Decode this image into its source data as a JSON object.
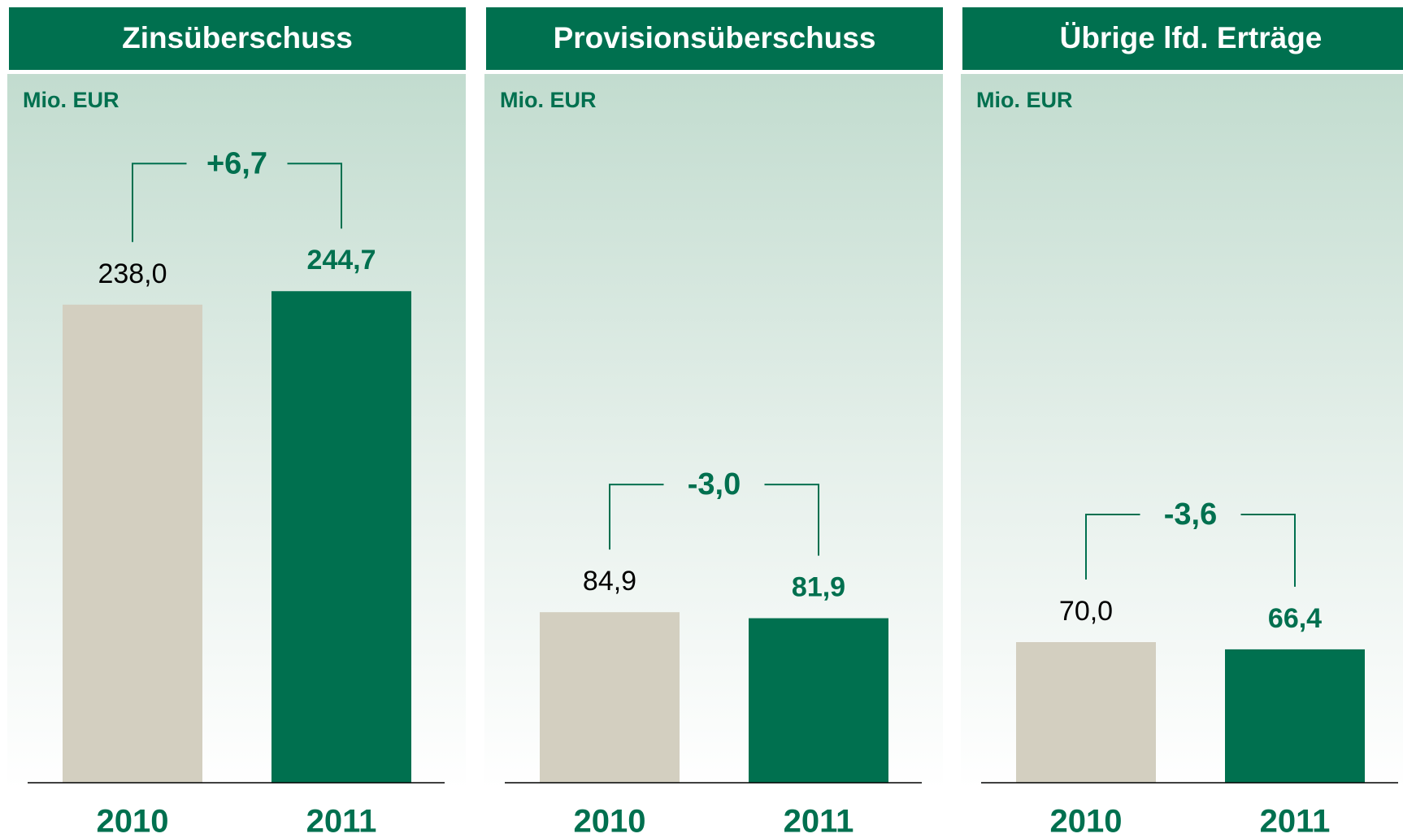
{
  "chart_data": [
    {
      "type": "bar",
      "title": "Zinsüberschuss",
      "unit_label": "Mio. EUR",
      "categories": [
        "2010",
        "2011"
      ],
      "values": [
        238.0,
        244.7
      ],
      "value_labels": [
        "238,0",
        "244,7"
      ],
      "colors": [
        "#d3cfc0",
        "#00704f"
      ],
      "ylim": [
        0,
        350
      ],
      "delta_label": "+6,7"
    },
    {
      "type": "bar",
      "title": "Provisionsüberschuss",
      "unit_label": "Mio. EUR",
      "categories": [
        "2010",
        "2011"
      ],
      "values": [
        84.9,
        81.9
      ],
      "value_labels": [
        "84,9",
        "81,9"
      ],
      "colors": [
        "#d3cfc0",
        "#00704f"
      ],
      "ylim": [
        0,
        350
      ],
      "delta_label": "-3,0"
    },
    {
      "type": "bar",
      "title": "Übrige lfd. Erträge",
      "unit_label": "Mio. EUR",
      "categories": [
        "2010",
        "2011"
      ],
      "values": [
        70.0,
        66.4
      ],
      "value_labels": [
        "70,0",
        "66,4"
      ],
      "colors": [
        "#d3cfc0",
        "#00704f"
      ],
      "ylim": [
        0,
        350
      ],
      "delta_label": "-3,6"
    }
  ]
}
